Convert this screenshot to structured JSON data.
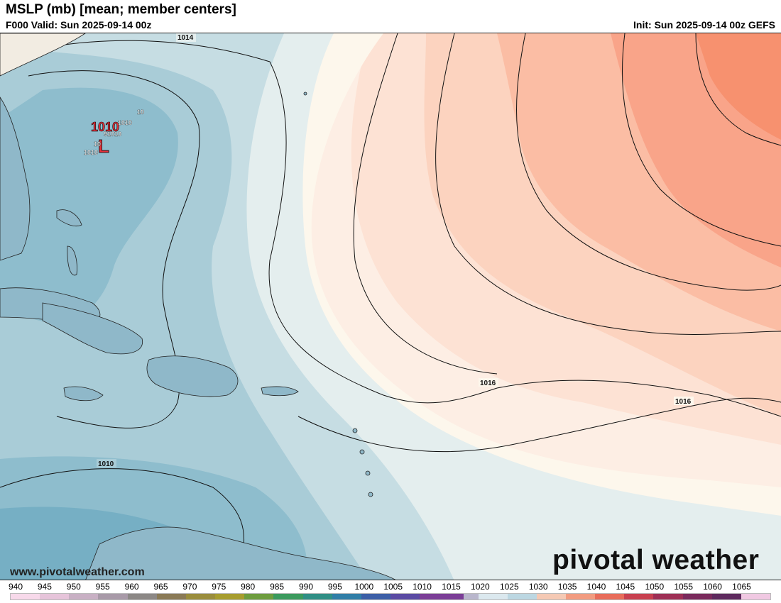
{
  "header": {
    "title": "MSLP (mb) [mean; member centers]",
    "valid": "F000 Valid: Sun 2025-09-14 00z",
    "init": "Init: Sun 2025-09-14 00z GEFS"
  },
  "map": {
    "contour_labels": [
      "1014",
      "1016",
      "1016",
      "1010"
    ],
    "low_symbol": "L",
    "low_value": "1010",
    "member_labels": [
      "10",
      "1010",
      "91010",
      "1010",
      "10",
      "1010"
    ],
    "colors": {
      "low_fill": "#5e9db8",
      "neutral_fill": "#e4eeee",
      "high_fill": "#f7916f",
      "low_symbol": "#e8303a",
      "land": "#8fb8c9"
    }
  },
  "watermark": {
    "url": "www.pivotalweather.com",
    "brand": "pivotal weather"
  },
  "colorbar": {
    "ticks": [
      "940",
      "945",
      "950",
      "955",
      "960",
      "965",
      "970",
      "975",
      "980",
      "985",
      "990",
      "995",
      "1000",
      "1005",
      "1010",
      "1015",
      "1020",
      "1025",
      "1030",
      "1035",
      "1040",
      "1045",
      "1050",
      "1055",
      "1060",
      "1065"
    ]
  }
}
